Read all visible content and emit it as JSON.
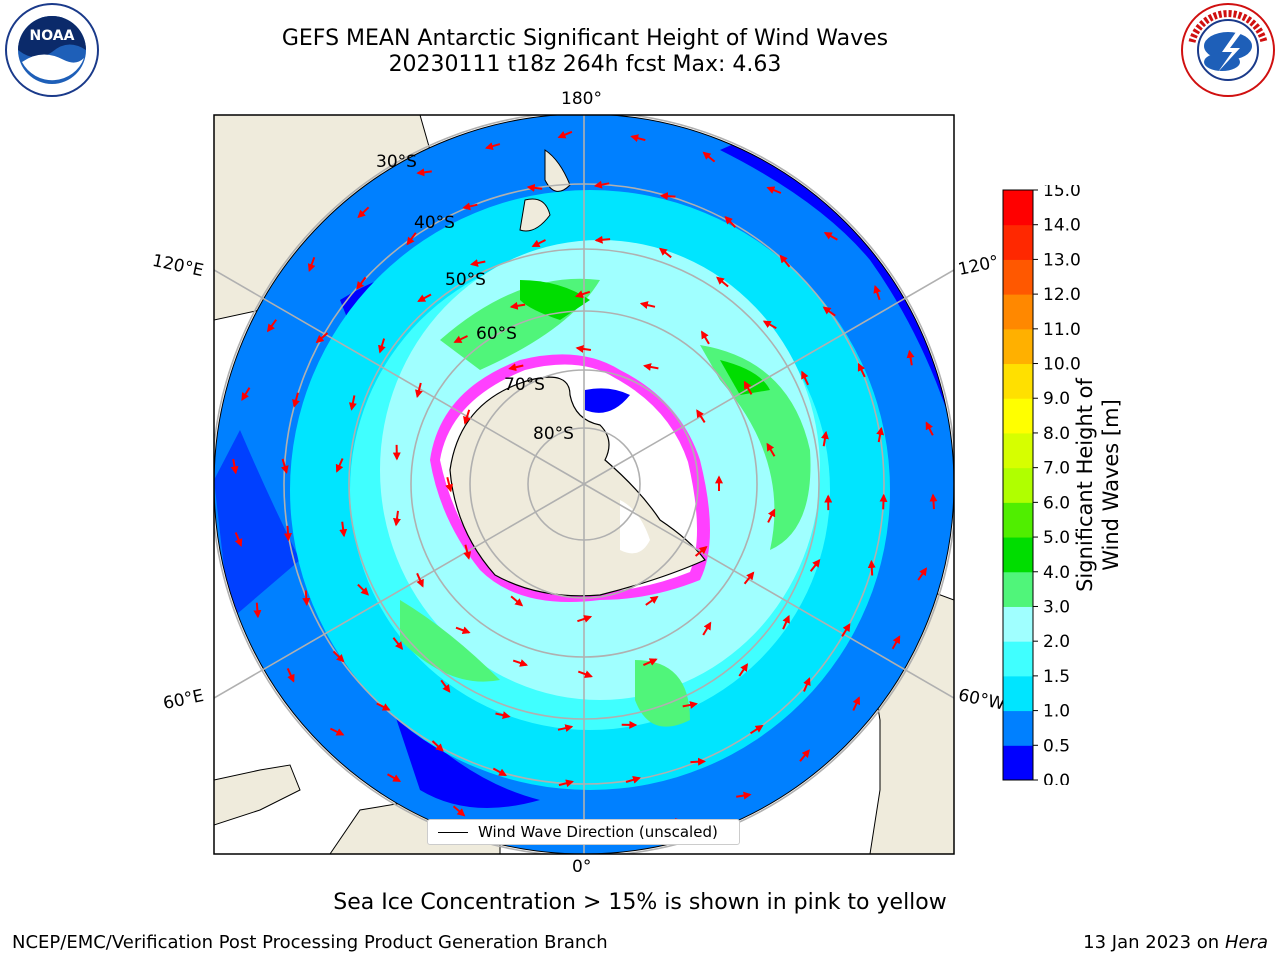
{
  "title": {
    "line1": "GEFS MEAN Antarctic Significant Height of Wind Waves",
    "line2": "20230111 t18z 264h fcst   Max: 4.63"
  },
  "logos": {
    "left": "NOAA",
    "right": "NATIONAL WEATHER SERVICE"
  },
  "map": {
    "longitude_labels": {
      "top": "180°",
      "bottom": "0°",
      "upper_left": "120°E",
      "lower_left": "60°E",
      "upper_right": "120°",
      "lower_right": "60°W"
    },
    "latitude_labels": [
      "30°S",
      "40°S",
      "50°S",
      "60°S",
      "70°S",
      "80°S"
    ],
    "legend": "Wind Wave Direction (unscaled)",
    "colors": {
      "land": "#efebdc",
      "ocean_edge": "#ffffff",
      "vector": "#ff0000",
      "grid": "#b0b0b0"
    }
  },
  "colorbar": {
    "label": "Significant Height of Wind Waves [m]",
    "ticks": [
      "0.0",
      "0.5",
      "1.0",
      "1.5",
      "2.0",
      "3.0",
      "4.0",
      "5.0",
      "6.0",
      "7.0",
      "8.0",
      "9.0",
      "10.0",
      "11.0",
      "12.0",
      "13.0",
      "14.0",
      "15.0"
    ],
    "colors": [
      "#0000ff",
      "#0080ff",
      "#00e5ff",
      "#40ffff",
      "#a0ffff",
      "#50f57a",
      "#00dd00",
      "#50ee00",
      "#b0ff00",
      "#d6ff00",
      "#ffff00",
      "#ffe000",
      "#ffb000",
      "#ff8800",
      "#ff5800",
      "#ff2800",
      "#ff0000"
    ]
  },
  "footer": {
    "note": "Sea Ice Concentration > 15% is shown in pink to yellow",
    "credit": "NCEP/EMC/Verification Post Processing Product Generation Branch",
    "date": "13 Jan 2023 on",
    "machine": "Hera"
  }
}
